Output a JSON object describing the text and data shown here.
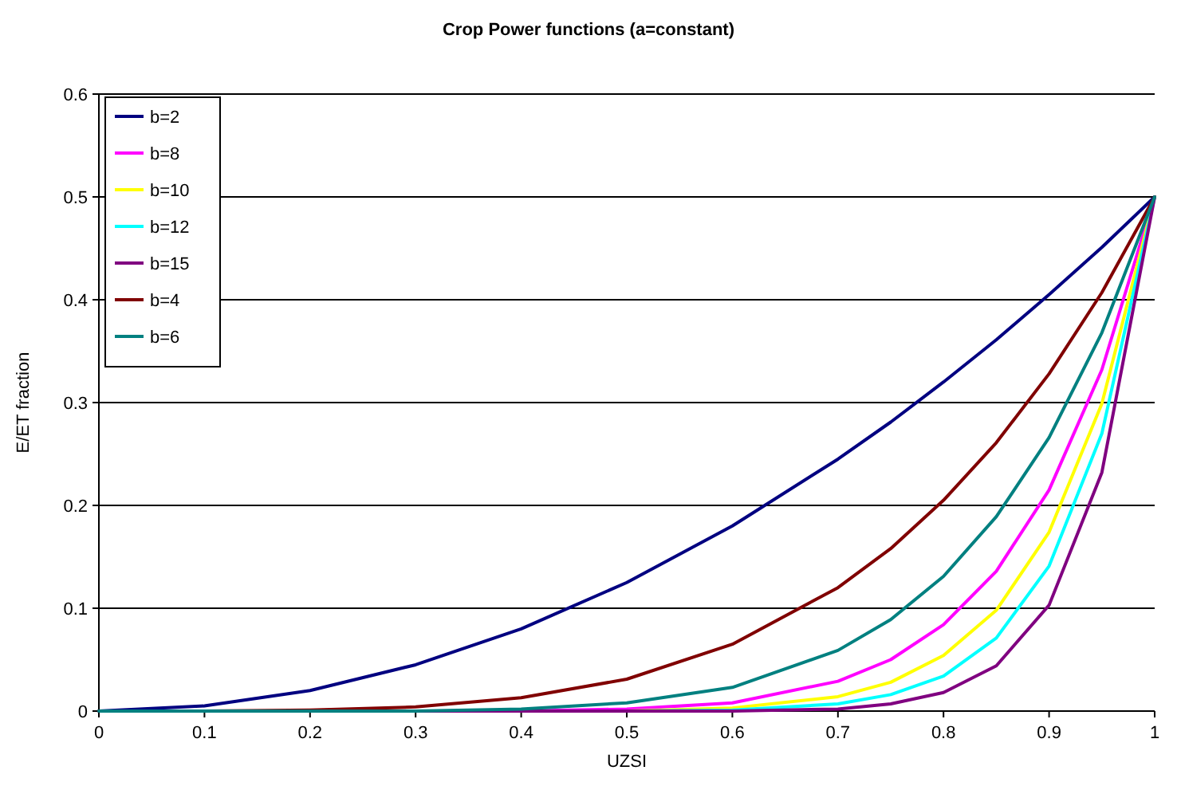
{
  "chart_data": {
    "type": "line",
    "title": "Crop Power functions (a=constant)",
    "xlabel": "UZSI",
    "ylabel": "E/ET fraction",
    "x": [
      0,
      0.1,
      0.2,
      0.3,
      0.4,
      0.5,
      0.6,
      0.7,
      0.75,
      0.8,
      0.85,
      0.9,
      0.95,
      1
    ],
    "series": [
      {
        "name": "b=2",
        "color": "#000080",
        "values": [
          0,
          0.005,
          0.02,
          0.045,
          0.08,
          0.125,
          0.18,
          0.245,
          0.281,
          0.32,
          0.361,
          0.405,
          0.451,
          0.5
        ]
      },
      {
        "name": "b=8",
        "color": "#ff00ff",
        "values": [
          null,
          null,
          null,
          0,
          0,
          0.002,
          0.008,
          0.029,
          0.05,
          0.084,
          0.136,
          0.215,
          0.332,
          0.5
        ]
      },
      {
        "name": "b=10",
        "color": "#ffff00",
        "values": [
          null,
          null,
          null,
          null,
          0,
          0,
          0.003,
          0.014,
          0.028,
          0.054,
          0.098,
          0.174,
          0.299,
          0.5
        ]
      },
      {
        "name": "b=12",
        "color": "#00ffff",
        "values": [
          null,
          null,
          null,
          null,
          0,
          0,
          0.001,
          0.007,
          0.016,
          0.034,
          0.071,
          0.141,
          0.27,
          0.5
        ]
      },
      {
        "name": "b=15",
        "color": "#800080",
        "values": [
          null,
          null,
          0,
          0,
          0,
          0,
          0,
          0.002,
          0.007,
          0.018,
          0.044,
          0.103,
          0.232,
          0.5
        ]
      },
      {
        "name": "b=4",
        "color": "#800000",
        "values": [
          0,
          0,
          0.001,
          0.004,
          0.013,
          0.031,
          0.065,
          0.12,
          0.158,
          0.205,
          0.261,
          0.328,
          0.407,
          0.5
        ]
      },
      {
        "name": "b=6",
        "color": "#008080",
        "values": [
          0,
          0,
          0,
          0,
          0.002,
          0.008,
          0.023,
          0.059,
          0.089,
          0.131,
          0.189,
          0.266,
          0.368,
          0.5
        ]
      }
    ],
    "xlim": [
      0,
      1
    ],
    "xticks": [
      0,
      0.1,
      0.2,
      0.3,
      0.4,
      0.5,
      0.6,
      0.7,
      0.8,
      0.9,
      1
    ],
    "ylim": [
      0,
      0.6
    ],
    "yticks": [
      0,
      0.1,
      0.2,
      0.3,
      0.4,
      0.5,
      0.6
    ],
    "grid": "y",
    "legend": "top left",
    "marker": "none",
    "line_style": "solid"
  }
}
